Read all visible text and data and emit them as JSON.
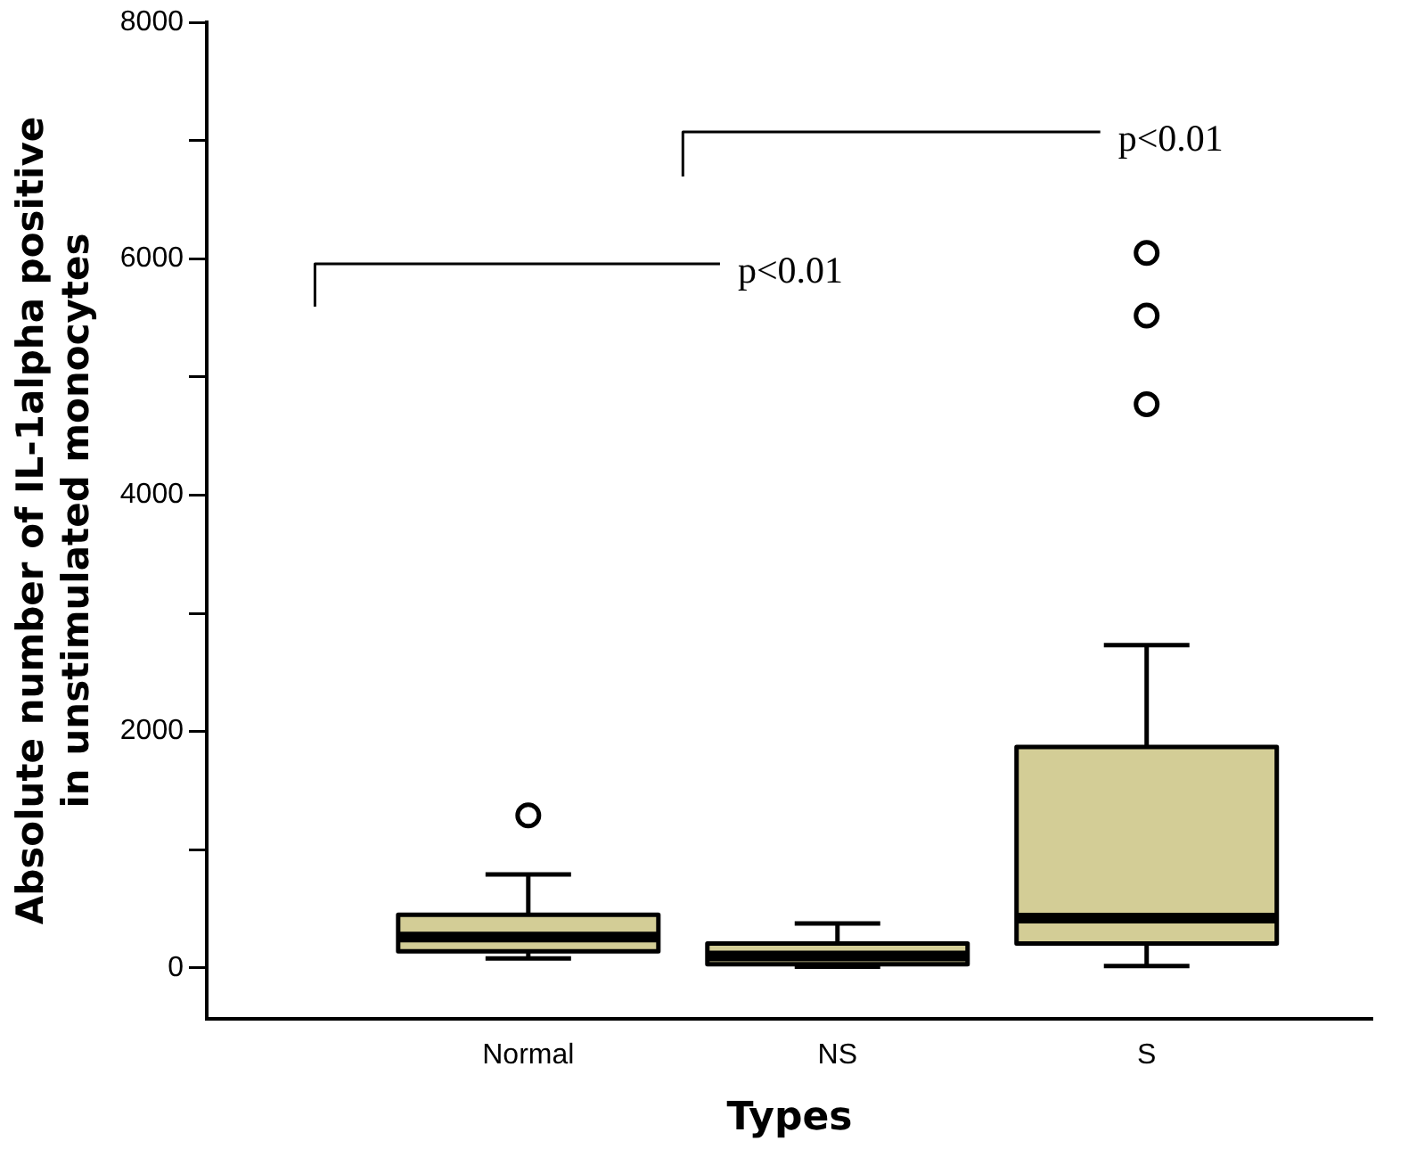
{
  "chart_data": {
    "type": "box",
    "xlabel": "Types",
    "ylabel": "Absolute number of IL-1alpha positive\nin unstimulated monocytes",
    "categories": [
      "Normal",
      "NS",
      "S"
    ],
    "color": "#d3cd96",
    "boxes": [
      {
        "low": 80,
        "q1": 140,
        "median": 260,
        "q3": 450,
        "high": 790,
        "outliers": [
          1290
        ]
      },
      {
        "low": 10,
        "q1": 30,
        "median": 100,
        "q3": 205,
        "high": 375
      },
      {
        "low": 15,
        "q1": 205,
        "median": 420,
        "q3": 1870,
        "high": 2730,
        "outliers": [
          4770,
          5520,
          6050
        ]
      }
    ],
    "ylim": [
      -430,
      8000
    ],
    "yticks": [
      0,
      {
        "value": 1000,
        "label": null
      },
      2000,
      {
        "value": 3000,
        "label": null
      },
      4000,
      {
        "value": 5000,
        "label": null
      },
      6000,
      {
        "value": 7000,
        "label": null
      },
      8000
    ],
    "annotations": [
      "p<0.01",
      "p<0.01"
    ],
    "grid": false,
    "legend": false
  }
}
